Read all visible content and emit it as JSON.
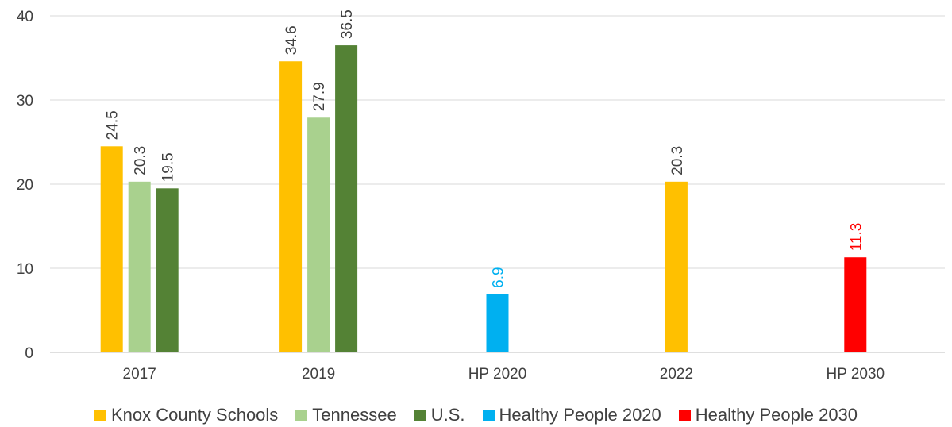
{
  "chart_data": {
    "type": "bar",
    "title": "",
    "xlabel": "",
    "ylabel": "",
    "ylim": [
      0,
      40
    ],
    "yticks": [
      0,
      10,
      20,
      30,
      40
    ],
    "grid": true,
    "legend_position": "bottom",
    "categories": [
      "2017",
      "2019",
      "HP 2020",
      "2022",
      "HP 2030"
    ],
    "series": [
      {
        "name": "Knox County Schools",
        "color": "#FFC000",
        "label_color": "#404040",
        "values": [
          24.5,
          34.6,
          null,
          20.3,
          null
        ]
      },
      {
        "name": "Tennessee",
        "color": "#A9D18E",
        "label_color": "#404040",
        "values": [
          20.3,
          27.9,
          null,
          null,
          null
        ]
      },
      {
        "name": "U.S.",
        "color": "#548235",
        "label_color": "#404040",
        "values": [
          19.5,
          36.5,
          null,
          null,
          null
        ]
      },
      {
        "name": "Healthy People 2020",
        "color": "#00B0F0",
        "label_color": "#00B0F0",
        "values": [
          null,
          null,
          6.9,
          null,
          null
        ]
      },
      {
        "name": "Healthy People 2030",
        "color": "#FF0000",
        "label_color": "#FF0000",
        "values": [
          null,
          null,
          null,
          null,
          11.3
        ]
      }
    ]
  }
}
